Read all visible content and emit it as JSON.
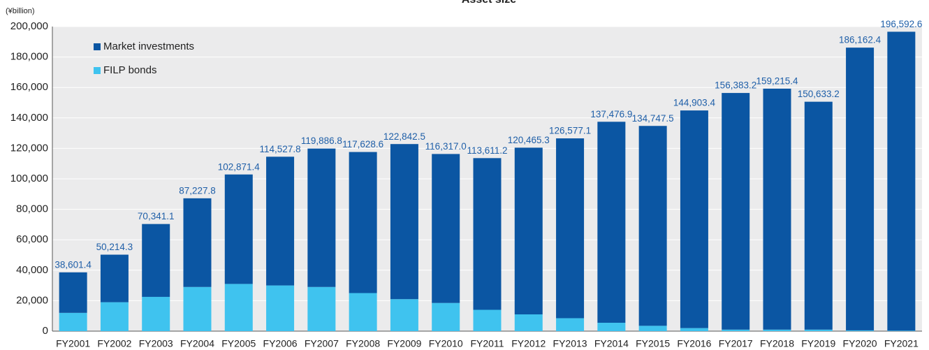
{
  "chart_data": {
    "type": "stacked_bar",
    "title": "Asset size",
    "y_unit": "(¥billion)",
    "categories": [
      "FY2001",
      "FY2002",
      "FY2003",
      "FY2004",
      "FY2005",
      "FY2006",
      "FY2007",
      "FY2008",
      "FY2009",
      "FY2010",
      "FY2011",
      "FY2012",
      "FY2013",
      "FY2014",
      "FY2015",
      "FY2016",
      "FY2017",
      "FY2018",
      "FY2019",
      "FY2020",
      "FY2021"
    ],
    "series": [
      {
        "name": "FILP bonds",
        "color": "#3fc3ef",
        "values": [
          12000,
          19000,
          22500,
          29000,
          31000,
          30000,
          29000,
          25000,
          21000,
          18500,
          14000,
          11000,
          8500,
          5500,
          3500,
          2000,
          1000,
          1000,
          1000,
          500,
          300
        ]
      },
      {
        "name": "Market investments",
        "color": "#0b56a3",
        "values": [
          26601.4,
          31214.3,
          47841.1,
          58227.8,
          71871.4,
          84527.8,
          90886.8,
          92628.6,
          101842.5,
          97817.0,
          99611.2,
          109465.3,
          118077.1,
          131976.9,
          131247.5,
          142903.4,
          155383.2,
          158215.4,
          149633.2,
          185662.4,
          196292.6
        ]
      }
    ],
    "totals": [
      38601.4,
      50214.3,
      70341.1,
      87227.8,
      102871.4,
      114527.8,
      119886.8,
      117628.6,
      122842.5,
      116317.0,
      113611.2,
      120465.3,
      126577.1,
      137476.9,
      134747.5,
      144903.4,
      156383.2,
      159215.4,
      150633.2,
      186162.4,
      196592.6
    ],
    "total_labels": [
      "38,601.4",
      "50,214.3",
      "70,341.1",
      "87,227.8",
      "102,871.4",
      "114,527.8",
      "119,886.8",
      "117,628.6",
      "122,842.5",
      "116,317.0",
      "113,611.2",
      "120,465.3",
      "126,577.1",
      "137,476.9",
      "134,747.5",
      "144,903.4",
      "156,383.2",
      "159,215.4",
      "150,633.2",
      "186,162.4",
      "196,592.6"
    ],
    "ylim": [
      0,
      200000
    ],
    "yticks": [
      0,
      {
        "value": 20000,
        "label": "20,000"
      },
      {
        "value": 40000,
        "label": "40,000"
      },
      {
        "value": 60000,
        "label": "60,000"
      },
      {
        "value": 80000,
        "label": "80,000"
      },
      {
        "value": 100000,
        "label": "100,000"
      },
      {
        "value": 120000,
        "label": "120,000"
      },
      {
        "value": 140000,
        "label": "140,000"
      },
      {
        "value": 160000,
        "label": "160,000"
      },
      {
        "value": 180000,
        "label": "180,000"
      },
      {
        "value": 200000,
        "label": "200,000"
      }
    ],
    "grid": true,
    "legend": "upper left"
  }
}
